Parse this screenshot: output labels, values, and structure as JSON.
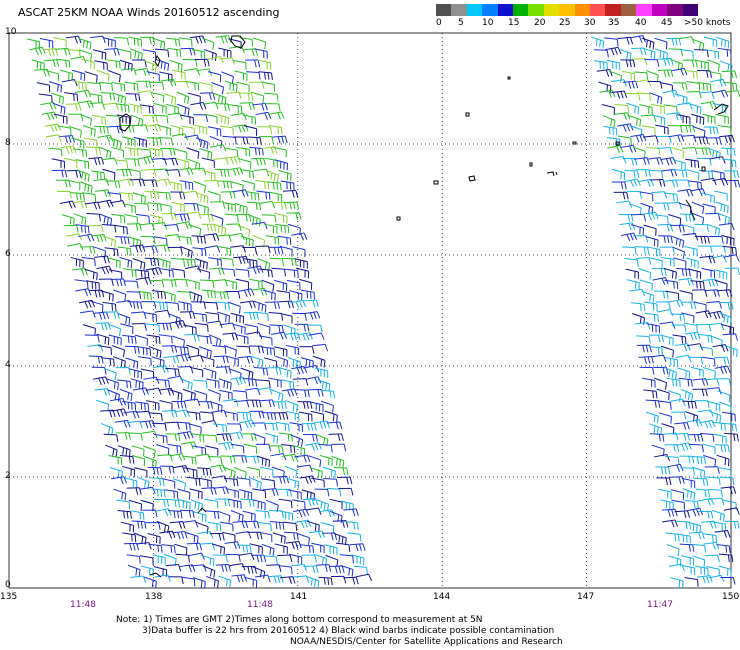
{
  "title": "ASCAT 25KM NOAA Winds 20160512 ascending",
  "legend": {
    "colors": [
      "#505050",
      "#909090",
      "#00c8ff",
      "#0080ff",
      "#1010d0",
      "#00b000",
      "#78e000",
      "#e0e000",
      "#ffc000",
      "#ff9000",
      "#ff5050",
      "#c02020",
      "#a06040",
      "#ff40ff",
      "#c000c0",
      "#800080",
      "#40007a"
    ],
    "tick_labels": [
      "0",
      "5",
      "10",
      "15",
      "20",
      "25",
      "30",
      "35",
      "40",
      "45",
      ">50 knots"
    ]
  },
  "axes": {
    "y_labels": [
      "10",
      "8",
      "6",
      "4",
      "2",
      "0"
    ],
    "x_labels": [
      "135",
      "138",
      "141",
      "144",
      "147",
      "150"
    ],
    "time_labels": [
      "11:48",
      "11:48",
      "11:47"
    ]
  },
  "notes": {
    "line1": "Note: 1) Times are GMT 2)Times along bottom correspond to measurement at 5N",
    "line2": "3)Data buffer is 22 hrs from 20160512 4) Black wind barbs indicate possible contamination",
    "line3": "NOAA/NESDIS/Center for Satellite Applications and Research"
  },
  "map": {
    "lon_range": [
      135,
      150
    ],
    "lat_range": [
      0,
      10
    ],
    "grid": true,
    "palette": {
      "cyan": "#12b4e6",
      "blue": "#1a2fd6",
      "navy": "#101090",
      "green": "#22c01e",
      "lime": "#8ad42a",
      "yellow": "#e0e000",
      "land": "#000000"
    }
  }
}
